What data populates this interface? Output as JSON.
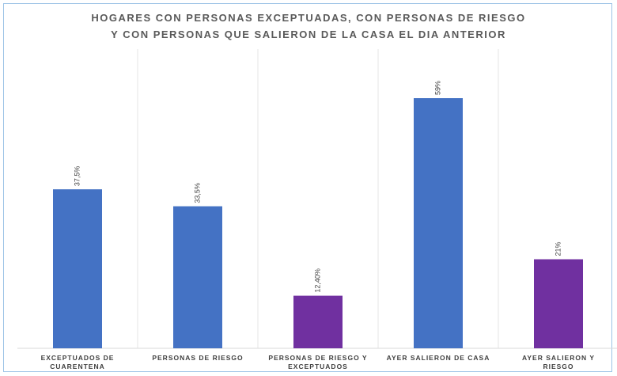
{
  "chart_data": {
    "type": "bar",
    "title": "HOGARES CON PERSONAS EXCEPTUADAS, CON PERSONAS DE RIESGO\nY CON PERSONAS QUE SALIERON DE LA CASA EL DIA ANTERIOR",
    "categories": [
      "EXCEPTUADOS DE\nCUARENTENA",
      "PERSONAS DE RIESGO",
      "PERSONAS DE RIESGO Y\nEXCEPTUADOS",
      "AYER SALIERON DE CASA",
      "AYER SALIERON Y\nRIESGO"
    ],
    "values": [
      37.5,
      33.5,
      12.4,
      59,
      21
    ],
    "value_labels": [
      "37,5%",
      "33,5%",
      "12,40%",
      "59%",
      "21%"
    ],
    "colors": [
      "#4472c4",
      "#4472c4",
      "#7030a0",
      "#4472c4",
      "#7030a0"
    ]
  }
}
